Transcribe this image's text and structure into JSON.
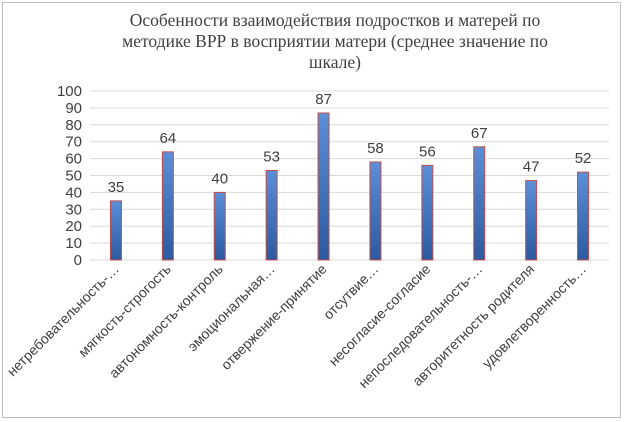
{
  "chart_data": {
    "type": "bar",
    "title": "Особенности взаимодействия подростков и матерей по методике ВРР в восприятии матери (среднее значение по шкале)",
    "categories": [
      "нетребовательность-…",
      "мягкость-строгость",
      "автономность-контроль",
      "эмоциональная…",
      "отвержение-принятие",
      "отсутвие…",
      "несогласие-согласие",
      "непоследовательность-…",
      "авторитетность родителя",
      "удовлетворенность…"
    ],
    "values": [
      35,
      64,
      40,
      53,
      87,
      58,
      56,
      67,
      47,
      52
    ],
    "ylim": [
      0,
      100
    ],
    "yticks": [
      0,
      10,
      20,
      30,
      40,
      50,
      60,
      70,
      80,
      90,
      100
    ],
    "grid": true,
    "data_labels": true,
    "colors": {
      "bar_top": "#5b8fd8",
      "bar_bottom": "#2c5aa0",
      "bar_border": "#c0504d",
      "grid": "#d9d9d9",
      "text": "#404040"
    }
  }
}
